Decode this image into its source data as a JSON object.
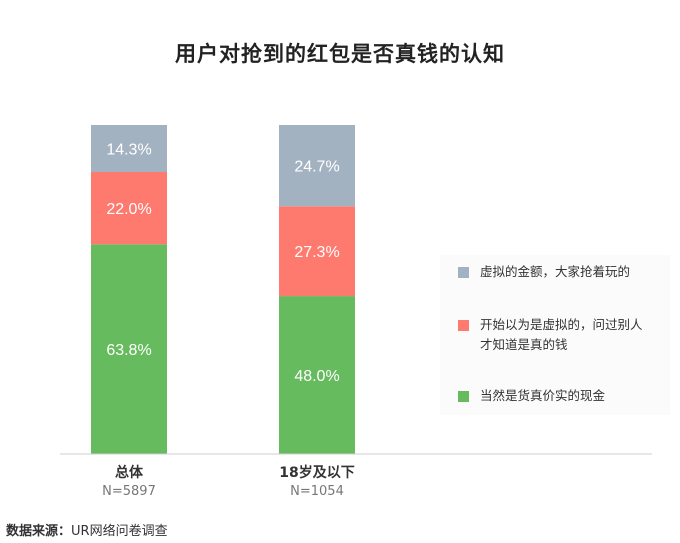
{
  "chart_data": {
    "type": "bar",
    "stacked": true,
    "title": "用户对抢到的红包是否真钱的认知",
    "categories": [
      "总体",
      "18岁及以下"
    ],
    "sample_sizes": [
      "N=5897",
      "N=1054"
    ],
    "ylim": [
      0,
      100
    ],
    "grid": false,
    "legend_position": "right",
    "series": [
      {
        "name": "当然是货真价实的现金",
        "values": [
          63.8,
          48.0
        ],
        "labels": [
          "63.8%",
          "48.0%"
        ],
        "color": "#66bb5e"
      },
      {
        "name": "开始以为是虚拟的，问过别人才知道是真的钱",
        "values": [
          22.0,
          27.3
        ],
        "labels": [
          "22.0%",
          "27.3%"
        ],
        "color": "#ff7a6e"
      },
      {
        "name": "虚拟的金额，大家抢着玩的",
        "values": [
          14.3,
          24.7
        ],
        "labels": [
          "14.3%",
          "24.7%"
        ],
        "color": "#a3b2c1"
      }
    ],
    "legend_items": [
      {
        "text_lines": [
          "虚拟的金额，大家抢着玩的"
        ],
        "color": "#a3b2c1"
      },
      {
        "text_lines": [
          "开始以为是虚拟的，问过别人",
          "才知道是真的钱"
        ],
        "color": "#ff7a6e"
      },
      {
        "text_lines": [
          "当然是货真价实的现金"
        ],
        "color": "#66bb5e"
      }
    ]
  },
  "source": {
    "label": "数据来源：",
    "text": "UR网络问卷调查"
  }
}
